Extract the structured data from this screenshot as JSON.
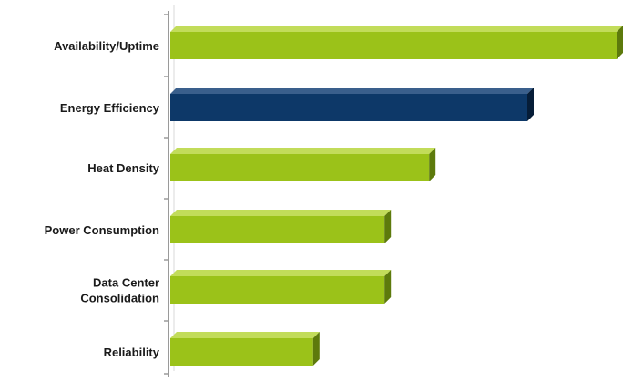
{
  "chart_data": {
    "type": "bar",
    "orientation": "horizontal",
    "style": "3d",
    "categories": [
      [
        "Availability/Uptime"
      ],
      [
        "Energy Efficiency"
      ],
      [
        "Heat Density"
      ],
      [
        "Power Consumption"
      ],
      [
        "Data Center",
        "Consolidation"
      ],
      [
        "Reliability"
      ]
    ],
    "values": [
      100,
      80,
      58,
      48,
      48,
      32
    ],
    "bar_colors": [
      "#9bc219",
      "#0d3868",
      "#9bc219",
      "#9bc219",
      "#9bc219",
      "#9bc219"
    ],
    "side_colors": [
      "#5d7a0c",
      "#061d38",
      "#5d7a0c",
      "#5d7a0c",
      "#5d7a0c",
      "#5d7a0c"
    ],
    "top_colors": [
      "#c2dc5a",
      "#3a5f8c",
      "#c2dc5a",
      "#c2dc5a",
      "#c2dc5a",
      "#c2dc5a"
    ],
    "xlim": [
      0,
      100
    ],
    "title": "",
    "xlabel": "",
    "ylabel": "",
    "grid": false,
    "legend": "none",
    "axis_color": "#9a9a9a"
  }
}
